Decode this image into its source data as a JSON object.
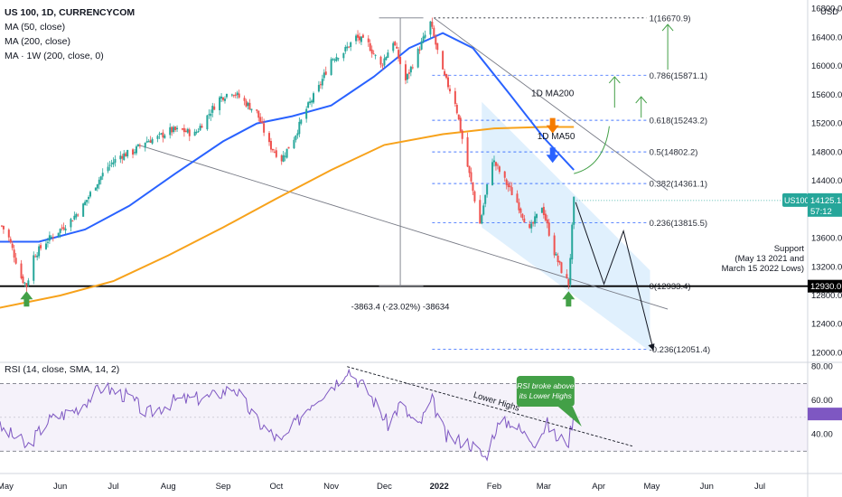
{
  "header": {
    "symbol_line": "US 100, 1D, CURRENCYCOM",
    "indicators": [
      "MA (50, close)",
      "MA (200, close)",
      "MA · 1W (200, close, 0)"
    ],
    "currency": "USD"
  },
  "chart_data": [
    {
      "type": "candlestick",
      "x_ticks": [
        "May",
        "Jun",
        "Jul",
        "Aug",
        "Sep",
        "Oct",
        "Nov",
        "Dec",
        "2022",
        "Feb",
        "Mar",
        "Apr",
        "May",
        "Jun",
        "Jul"
      ],
      "y_ticks": [
        "16800.0",
        "16400.0",
        "16000.0",
        "15600.0",
        "15200.0",
        "14800.0",
        "14400.0",
        "13600.0",
        "13200.0",
        "12800.0",
        "12400.0",
        "12000.0"
      ],
      "ylim": [
        11880,
        16820
      ],
      "close_path": [
        [
          "2021-04-26",
          13900
        ],
        [
          "2021-05-03",
          13600
        ],
        [
          "2021-05-10",
          13050
        ],
        [
          "2021-05-13",
          12935
        ],
        [
          "2021-05-17",
          13350
        ],
        [
          "2021-05-24",
          13550
        ],
        [
          "2021-05-31",
          13700
        ],
        [
          "2021-06-07",
          13850
        ],
        [
          "2021-06-14",
          14050
        ],
        [
          "2021-06-21",
          14350
        ],
        [
          "2021-06-28",
          14600
        ],
        [
          "2021-07-05",
          14750
        ],
        [
          "2021-07-12",
          14800
        ],
        [
          "2021-07-19",
          14950
        ],
        [
          "2021-07-26",
          15000
        ],
        [
          "2021-08-02",
          15100
        ],
        [
          "2021-08-09",
          15100
        ],
        [
          "2021-08-16",
          15050
        ],
        [
          "2021-08-23",
          15300
        ],
        [
          "2021-08-30",
          15550
        ],
        [
          "2021-09-06",
          15650
        ],
        [
          "2021-09-13",
          15500
        ],
        [
          "2021-09-20",
          15350
        ],
        [
          "2021-09-27",
          14900
        ],
        [
          "2021-10-04",
          14700
        ],
        [
          "2021-10-11",
          15000
        ],
        [
          "2021-10-18",
          15400
        ],
        [
          "2021-10-25",
          15700
        ],
        [
          "2021-11-01",
          16100
        ],
        [
          "2021-11-08",
          16200
        ],
        [
          "2021-11-15",
          16400
        ],
        [
          "2021-11-22",
          16300
        ],
        [
          "2021-11-29",
          16000
        ],
        [
          "2021-12-06",
          16350
        ],
        [
          "2021-12-13",
          15800
        ],
        [
          "2021-12-20",
          16200
        ],
        [
          "2021-12-27",
          16600
        ],
        [
          "2022-01-03",
          15900
        ],
        [
          "2022-01-10",
          15500
        ],
        [
          "2022-01-17",
          14600
        ],
        [
          "2022-01-24",
          13800
        ],
        [
          "2022-01-31",
          14700
        ],
        [
          "2022-02-07",
          14400
        ],
        [
          "2022-02-14",
          14100
        ],
        [
          "2022-02-21",
          13700
        ],
        [
          "2022-02-28",
          14050
        ],
        [
          "2022-03-07",
          13400
        ],
        [
          "2022-03-11",
          13150
        ],
        [
          "2022-03-15",
          12960
        ],
        [
          "2022-03-18",
          14125
        ]
      ],
      "ma50_path": [
        [
          "2021-04-26",
          13550
        ],
        [
          "2021-05-20",
          13550
        ],
        [
          "2021-06-15",
          13720
        ],
        [
          "2021-07-10",
          14050
        ],
        [
          "2021-08-05",
          14500
        ],
        [
          "2021-09-01",
          14950
        ],
        [
          "2021-09-20",
          15200
        ],
        [
          "2021-10-10",
          15300
        ],
        [
          "2021-11-01",
          15450
        ],
        [
          "2021-11-25",
          15850
        ],
        [
          "2021-12-15",
          16250
        ],
        [
          "2022-01-03",
          16460
        ],
        [
          "2022-01-20",
          16250
        ],
        [
          "2022-02-10",
          15600
        ],
        [
          "2022-03-01",
          15000
        ],
        [
          "2022-03-18",
          14550
        ]
      ],
      "ma200_path": [
        [
          "2021-04-26",
          12620
        ],
        [
          "2021-06-01",
          12800
        ],
        [
          "2021-07-01",
          13000
        ],
        [
          "2021-08-01",
          13360
        ],
        [
          "2021-09-01",
          13750
        ],
        [
          "2021-10-01",
          14150
        ],
        [
          "2021-11-01",
          14550
        ],
        [
          "2021-12-01",
          14900
        ],
        [
          "2022-01-03",
          15050
        ],
        [
          "2022-02-01",
          15130
        ],
        [
          "2022-03-01",
          15150
        ],
        [
          "2022-03-18",
          15150
        ]
      ],
      "last_price": "14125.1",
      "countdown": "57:12",
      "price_tag": "US100",
      "support_price": "12930.0",
      "fib_levels": [
        {
          "ratio": 1,
          "price": 16670.9,
          "label": "1(16670.9)"
        },
        {
          "ratio": 0.786,
          "price": 15871.1,
          "label": "0.786(15871.1)"
        },
        {
          "ratio": 0.618,
          "price": 15243.2,
          "label": "0.618(15243.2)"
        },
        {
          "ratio": 0.5,
          "price": 14802.2,
          "label": "0.5(14802.2)"
        },
        {
          "ratio": 0.382,
          "price": 14361.1,
          "label": "0.382(14361.1)"
        },
        {
          "ratio": 0.236,
          "price": 13815.5,
          "label": "0.236(13815.5)"
        },
        {
          "ratio": 0,
          "price": 12933.4,
          "label": "0(12933.4)"
        },
        {
          "ratio": -0.236,
          "price": 12051.4,
          "label": "-0.236(12051.4)"
        }
      ],
      "annotations": {
        "ma200_label": "1D MA200",
        "ma50_label": "1D MA50",
        "measure": "-3863.4 (-23.02%) -38634",
        "support_lines": [
          "Support",
          "(May 13 2021 and",
          "March 15 2022 Lows)"
        ]
      },
      "colors": {
        "up": "#26a69a",
        "down": "#ef5350",
        "ma50": "#2962ff",
        "ma200": "#f7a21b",
        "channel": "#bbdefb"
      }
    },
    {
      "type": "line",
      "title": "RSI (14, close, SMA, 14, 2)",
      "y_ticks": [
        "80.00",
        "60.00",
        "40.00"
      ],
      "ylim": [
        20,
        82
      ],
      "levels": {
        "upper": 70,
        "lower": 30
      },
      "rsi_path": [
        [
          "2021-04-26",
          45
        ],
        [
          "2021-05-10",
          36
        ],
        [
          "2021-05-13",
          32
        ],
        [
          "2021-05-25",
          48
        ],
        [
          "2021-06-10",
          55
        ],
        [
          "2021-06-25",
          68
        ],
        [
          "2021-07-10",
          62
        ],
        [
          "2021-07-20",
          52
        ],
        [
          "2021-08-05",
          60
        ],
        [
          "2021-08-25",
          62
        ],
        [
          "2021-09-07",
          68
        ],
        [
          "2021-09-20",
          48
        ],
        [
          "2021-10-04",
          35
        ],
        [
          "2021-10-20",
          58
        ],
        [
          "2021-11-05",
          72
        ],
        [
          "2021-11-10",
          79
        ],
        [
          "2021-11-22",
          65
        ],
        [
          "2021-12-03",
          46
        ],
        [
          "2021-12-10",
          58
        ],
        [
          "2021-12-20",
          44
        ],
        [
          "2021-12-28",
          60
        ],
        [
          "2022-01-05",
          38
        ],
        [
          "2022-01-18",
          35
        ],
        [
          "2022-01-27",
          26
        ],
        [
          "2022-02-02",
          44
        ],
        [
          "2022-02-10",
          48
        ],
        [
          "2022-02-18",
          40
        ],
        [
          "2022-02-24",
          36
        ],
        [
          "2022-03-03",
          46
        ],
        [
          "2022-03-08",
          38
        ],
        [
          "2022-03-15",
          36
        ],
        [
          "2022-03-18",
          52
        ]
      ],
      "annotations": {
        "trend": "Lower Highs",
        "bubble": [
          "RSI broke above",
          "its Lower Highs"
        ]
      }
    }
  ]
}
